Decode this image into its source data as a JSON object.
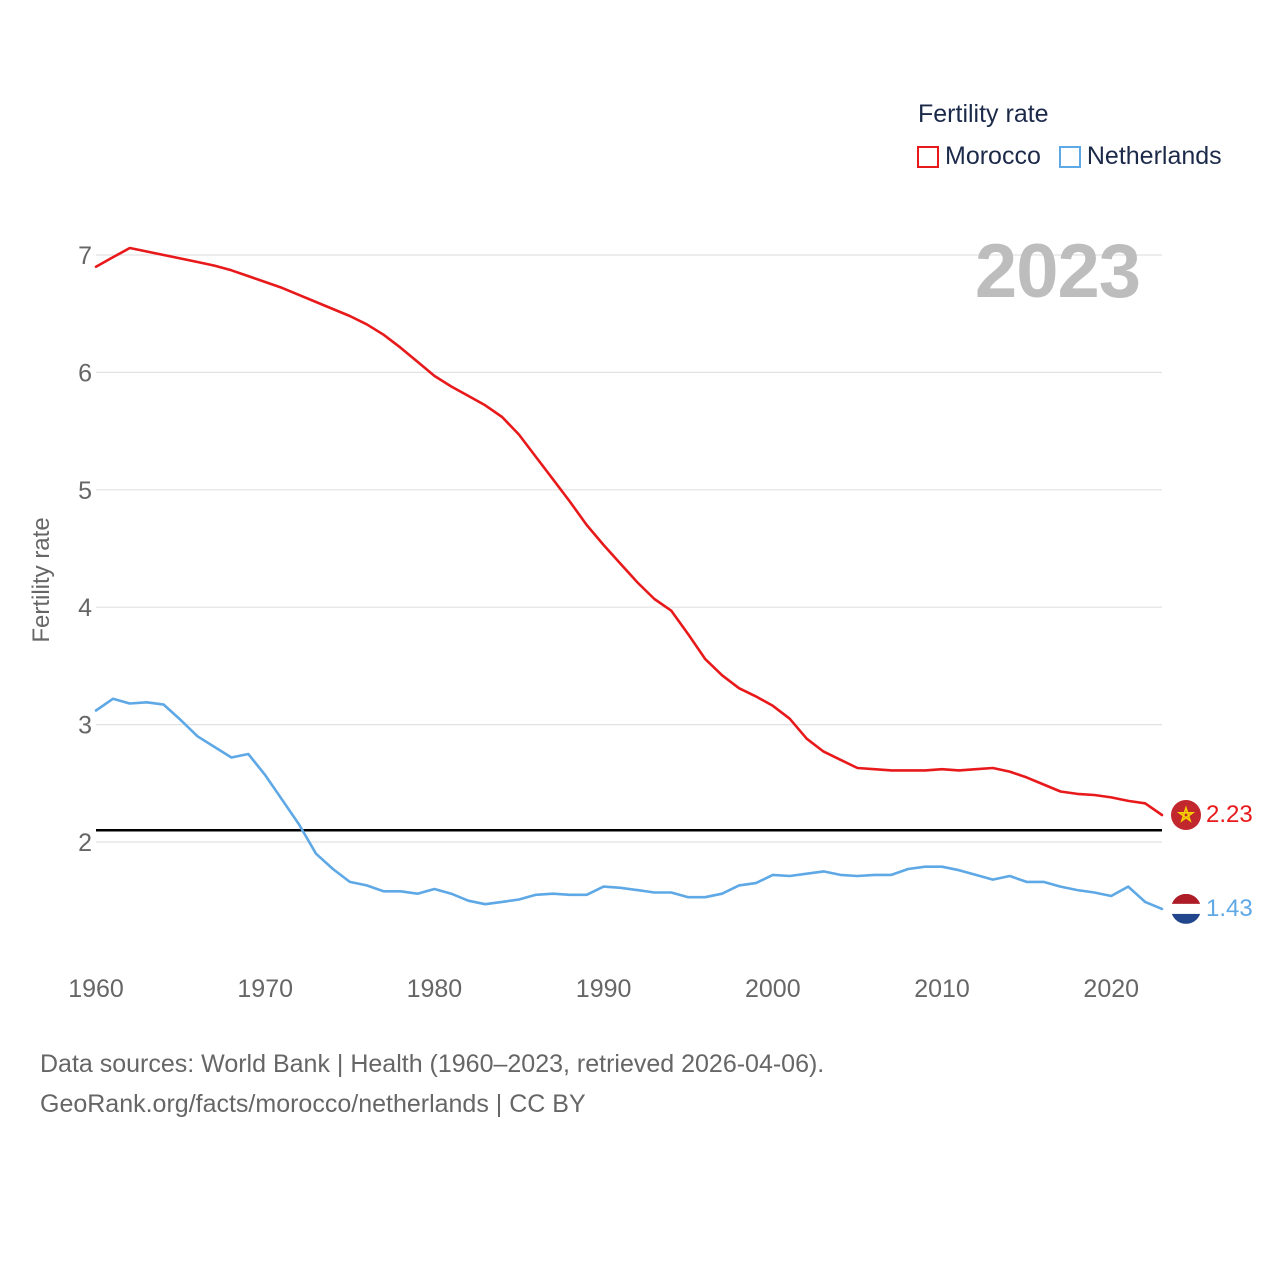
{
  "chart_data": {
    "type": "line",
    "title": "Fertility rate",
    "year_display": "2023",
    "xlabel": "",
    "ylabel": "Fertility rate",
    "xlim": [
      1960,
      2023
    ],
    "ylim": [
      1.0,
      7.5
    ],
    "x_ticks": [
      "1960",
      "1970",
      "1980",
      "1990",
      "2000",
      "2010",
      "2020"
    ],
    "y_ticks": [
      "2",
      "3",
      "4",
      "5",
      "6",
      "7"
    ],
    "reference_line": 2.1,
    "x": [
      1960,
      1961,
      1962,
      1963,
      1964,
      1965,
      1966,
      1967,
      1968,
      1969,
      1970,
      1971,
      1972,
      1973,
      1974,
      1975,
      1976,
      1977,
      1978,
      1979,
      1980,
      1981,
      1982,
      1983,
      1984,
      1985,
      1986,
      1987,
      1988,
      1989,
      1990,
      1991,
      1992,
      1993,
      1994,
      1995,
      1996,
      1997,
      1998,
      1999,
      2000,
      2001,
      2002,
      2003,
      2004,
      2005,
      2006,
      2007,
      2008,
      2009,
      2010,
      2011,
      2012,
      2013,
      2014,
      2015,
      2016,
      2017,
      2018,
      2019,
      2020,
      2021,
      2022,
      2023
    ],
    "series": [
      {
        "name": "Morocco",
        "color": "#e8191b",
        "end_label": "2.23",
        "values": [
          6.9,
          6.98,
          7.06,
          7.03,
          7.0,
          6.97,
          6.94,
          6.91,
          6.87,
          6.82,
          6.77,
          6.72,
          6.66,
          6.6,
          6.54,
          6.48,
          6.41,
          6.32,
          6.21,
          6.09,
          5.97,
          5.88,
          5.8,
          5.72,
          5.62,
          5.47,
          5.28,
          5.09,
          4.9,
          4.7,
          4.53,
          4.37,
          4.21,
          4.07,
          3.97,
          3.77,
          3.56,
          3.42,
          3.31,
          3.24,
          3.16,
          3.05,
          2.88,
          2.77,
          2.7,
          2.63,
          2.62,
          2.61,
          2.61,
          2.61,
          2.62,
          2.61,
          2.62,
          2.63,
          2.6,
          2.55,
          2.49,
          2.43,
          2.41,
          2.4,
          2.38,
          2.35,
          2.33,
          2.23
        ]
      },
      {
        "name": "Netherlands",
        "color": "#5ea8e6",
        "end_label": "1.43",
        "values": [
          3.12,
          3.22,
          3.18,
          3.19,
          3.17,
          3.04,
          2.9,
          2.81,
          2.72,
          2.75,
          2.57,
          2.36,
          2.15,
          1.9,
          1.77,
          1.66,
          1.63,
          1.58,
          1.58,
          1.56,
          1.6,
          1.56,
          1.5,
          1.47,
          1.49,
          1.51,
          1.55,
          1.56,
          1.55,
          1.55,
          1.62,
          1.61,
          1.59,
          1.57,
          1.57,
          1.53,
          1.53,
          1.56,
          1.63,
          1.65,
          1.72,
          1.71,
          1.73,
          1.75,
          1.72,
          1.71,
          1.72,
          1.72,
          1.77,
          1.79,
          1.79,
          1.76,
          1.72,
          1.68,
          1.71,
          1.66,
          1.66,
          1.62,
          1.59,
          1.57,
          1.54,
          1.62,
          1.49,
          1.43
        ]
      }
    ]
  },
  "legend": {
    "title": "Fertility rate",
    "items": [
      {
        "label": "Morocco",
        "color": "#e8191b"
      },
      {
        "label": "Netherlands",
        "color": "#5ea8e6"
      }
    ]
  },
  "source": {
    "line1": "Data sources: World Bank | Health (1960–2023, retrieved 2026-04-06).",
    "line2": "GeoRank.org/facts/morocco/netherlands | CC BY"
  },
  "flags": {
    "morocco": "morocco-flag-icon",
    "netherlands": "netherlands-flag-icon"
  }
}
